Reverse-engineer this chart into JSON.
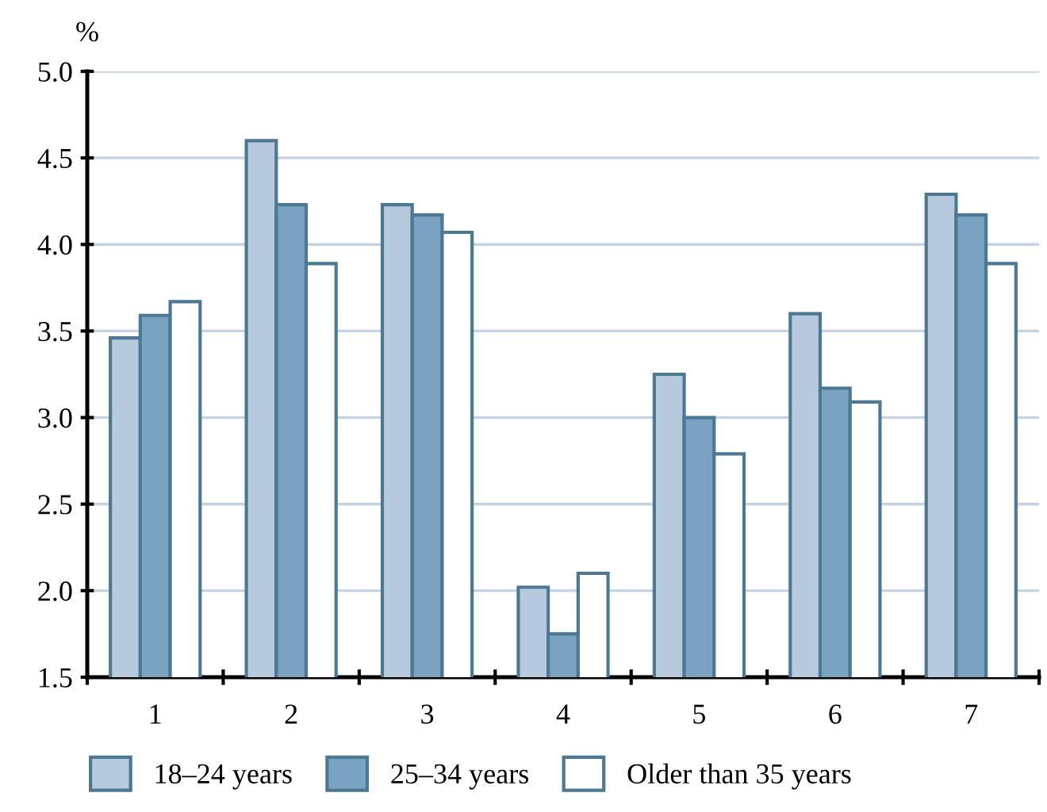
{
  "chart_data": {
    "type": "bar",
    "ylabel": "%",
    "categories": [
      "1",
      "2",
      "3",
      "4",
      "5",
      "6",
      "7"
    ],
    "series": [
      {
        "name": "18–24 years",
        "color": "#b7c9dc",
        "values": [
          3.46,
          4.6,
          4.23,
          2.02,
          3.25,
          3.6,
          4.29
        ]
      },
      {
        "name": "25–34 years",
        "color": "#7aa3c2",
        "values": [
          3.59,
          4.23,
          4.17,
          1.75,
          3.0,
          3.17,
          4.17
        ]
      },
      {
        "name": "Older than 35 years",
        "color": "#ffffff",
        "values": [
          3.67,
          3.89,
          4.07,
          2.1,
          2.79,
          3.09,
          3.89
        ]
      }
    ],
    "ylim": [
      1.5,
      5.0
    ],
    "yticks": [
      {
        "value": 1.5,
        "label": "1.5"
      },
      {
        "value": 2,
        "label": "2.0"
      },
      {
        "value": 2.5,
        "label": "2.5"
      },
      {
        "value": 3,
        "label": "3.0"
      },
      {
        "value": 3.5,
        "label": "3.5"
      },
      {
        "value": 4,
        "label": "4.0"
      },
      {
        "value": 4.5,
        "label": "4.5"
      },
      {
        "value": 5,
        "label": "5.0"
      }
    ],
    "grid": "y",
    "legend": "bottom"
  }
}
